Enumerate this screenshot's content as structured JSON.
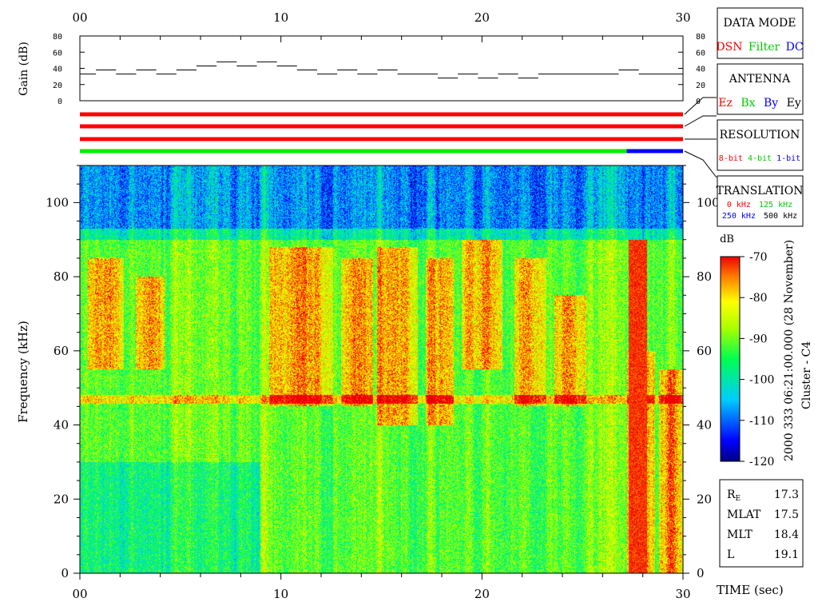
{
  "chart_data": [
    {
      "type": "line",
      "name": "gain",
      "ylabel": "Gain (dB)",
      "xlim": [
        0,
        30
      ],
      "ylim": [
        0,
        80
      ],
      "x_ticks": [
        "00",
        "10",
        "20",
        "30"
      ],
      "y_ticks": [
        "0",
        "20",
        "40",
        "60",
        "80"
      ],
      "segments": [
        {
          "x0": 0.0,
          "x1": 0.8,
          "y": 33
        },
        {
          "x0": 0.8,
          "x1": 1.8,
          "y": 38
        },
        {
          "x0": 1.8,
          "x1": 2.8,
          "y": 33
        },
        {
          "x0": 2.8,
          "x1": 3.8,
          "y": 38
        },
        {
          "x0": 3.8,
          "x1": 4.8,
          "y": 33
        },
        {
          "x0": 4.8,
          "x1": 5.8,
          "y": 38
        },
        {
          "x0": 5.8,
          "x1": 6.8,
          "y": 43
        },
        {
          "x0": 6.8,
          "x1": 7.8,
          "y": 48
        },
        {
          "x0": 7.8,
          "x1": 8.8,
          "y": 43
        },
        {
          "x0": 8.8,
          "x1": 9.8,
          "y": 48
        },
        {
          "x0": 9.8,
          "x1": 10.8,
          "y": 43
        },
        {
          "x0": 10.8,
          "x1": 11.8,
          "y": 38
        },
        {
          "x0": 11.8,
          "x1": 12.8,
          "y": 33
        },
        {
          "x0": 12.8,
          "x1": 13.8,
          "y": 38
        },
        {
          "x0": 13.8,
          "x1": 14.8,
          "y": 33
        },
        {
          "x0": 14.8,
          "x1": 15.8,
          "y": 38
        },
        {
          "x0": 15.8,
          "x1": 17.8,
          "y": 33
        },
        {
          "x0": 17.8,
          "x1": 18.8,
          "y": 28
        },
        {
          "x0": 18.8,
          "x1": 19.8,
          "y": 33
        },
        {
          "x0": 19.8,
          "x1": 20.8,
          "y": 28
        },
        {
          "x0": 20.8,
          "x1": 21.8,
          "y": 33
        },
        {
          "x0": 21.8,
          "x1": 22.8,
          "y": 28
        },
        {
          "x0": 22.8,
          "x1": 26.8,
          "y": 33
        },
        {
          "x0": 26.8,
          "x1": 27.8,
          "y": 38
        },
        {
          "x0": 27.8,
          "x1": 30.0,
          "y": 33
        }
      ]
    },
    {
      "type": "heatmap",
      "name": "spectrogram",
      "xlabel": "TIME (sec)",
      "ylabel": "Frequency (kHz)",
      "xlim": [
        0,
        30
      ],
      "ylim": [
        0,
        110
      ],
      "x_ticks": [
        "00",
        "10",
        "20",
        "30"
      ],
      "y_ticks": [
        "0",
        "20",
        "40",
        "60",
        "80",
        "100"
      ],
      "colorbar": {
        "unit": "dB",
        "min": -120,
        "max": -70,
        "ticks": [
          "-70",
          "-80",
          "-90",
          "-100",
          "-110",
          "-120"
        ]
      },
      "features": {
        "upper_band_kHz": [
          90,
          110
        ],
        "upper_band_level_dB": -110,
        "horizontal_line_kHz": 47,
        "strong_vertical_burst_sec": [
          27.3,
          28.2
        ],
        "strong_regions": [
          {
            "t": [
              0.4,
              2.2
            ],
            "f": [
              55,
              85
            ]
          },
          {
            "t": [
              2.8,
              4.2
            ],
            "f": [
              55,
              80
            ]
          },
          {
            "t": [
              9.4,
              12.6
            ],
            "f": [
              45,
              88
            ]
          },
          {
            "t": [
              13.0,
              14.6
            ],
            "f": [
              45,
              85
            ]
          },
          {
            "t": [
              14.8,
              16.8
            ],
            "f": [
              40,
              88
            ]
          },
          {
            "t": [
              17.2,
              18.6
            ],
            "f": [
              40,
              85
            ]
          },
          {
            "t": [
              19.0,
              21.0
            ],
            "f": [
              55,
              90
            ]
          },
          {
            "t": [
              21.6,
              23.2
            ],
            "f": [
              45,
              85
            ]
          },
          {
            "t": [
              23.6,
              25.2
            ],
            "f": [
              45,
              75
            ]
          },
          {
            "t": [
              27.2,
              28.6
            ],
            "f": [
              0,
              60
            ]
          },
          {
            "t": [
              28.8,
              30.0
            ],
            "f": [
              0,
              55
            ]
          }
        ]
      }
    },
    {
      "type": "bar",
      "name": "status-bars",
      "rows": [
        {
          "label": "DATA MODE",
          "segments": [
            {
              "from": 0,
              "to": 30,
              "color": "#ff0000"
            }
          ]
        },
        {
          "label": "ANTENNA",
          "segments": [
            {
              "from": 0,
              "to": 30,
              "color": "#ff0000"
            }
          ]
        },
        {
          "label": "RESOLUTION",
          "segments": [
            {
              "from": 0,
              "to": 30,
              "color": "#ff0000"
            }
          ]
        },
        {
          "label": "TRANSLATION",
          "segments": [
            {
              "from": 0,
              "to": 27.2,
              "color": "#00ee00"
            },
            {
              "from": 27.2,
              "to": 30,
              "color": "#0000ff"
            }
          ]
        }
      ]
    }
  ],
  "legend_boxes": {
    "data_mode": {
      "title": "DATA MODE",
      "items": [
        {
          "text": "DSN",
          "color": "#ff0000"
        },
        {
          "text": "Filter",
          "color": "#00cc00"
        },
        {
          "text": "DC",
          "color": "#0000ff"
        }
      ]
    },
    "antenna": {
      "title": "ANTENNA",
      "items": [
        {
          "text": "Ez",
          "color": "#ff0000"
        },
        {
          "text": "Bx",
          "color": "#00cc00"
        },
        {
          "text": "By",
          "color": "#0000ff"
        },
        {
          "text": "Ey",
          "color": "#000000"
        }
      ]
    },
    "resolution": {
      "title": "RESOLUTION",
      "items": [
        {
          "text": "8-bit",
          "color": "#ff0000"
        },
        {
          "text": "4-bit",
          "color": "#00cc00"
        },
        {
          "text": "1-bit",
          "color": "#0000ff"
        }
      ]
    },
    "translation": {
      "title": "TRANSLATION",
      "items": [
        {
          "text": "0 kHz",
          "color": "#ff0000"
        },
        {
          "text": "125 kHz",
          "color": "#00cc00"
        },
        {
          "text": "250 kHz",
          "color": "#0000ff"
        },
        {
          "text": "500 kHz",
          "color": "#000000"
        }
      ]
    }
  },
  "orbit_info": {
    "rows": [
      {
        "label": "R",
        "sub": "E",
        "value": "17.3"
      },
      {
        "label": "MLAT",
        "sub": "",
        "value": "17.5"
      },
      {
        "label": "MLT",
        "sub": "",
        "value": "18.4"
      },
      {
        "label": "L",
        "sub": "",
        "value": "19.1"
      }
    ]
  },
  "side_text": {
    "date": "2000 333 06:21:00.000 (28 November)",
    "spacecraft": "Cluster - C4"
  },
  "colors": {
    "red": "#ff0000",
    "green": "#00ee00",
    "blue": "#0000ff"
  }
}
